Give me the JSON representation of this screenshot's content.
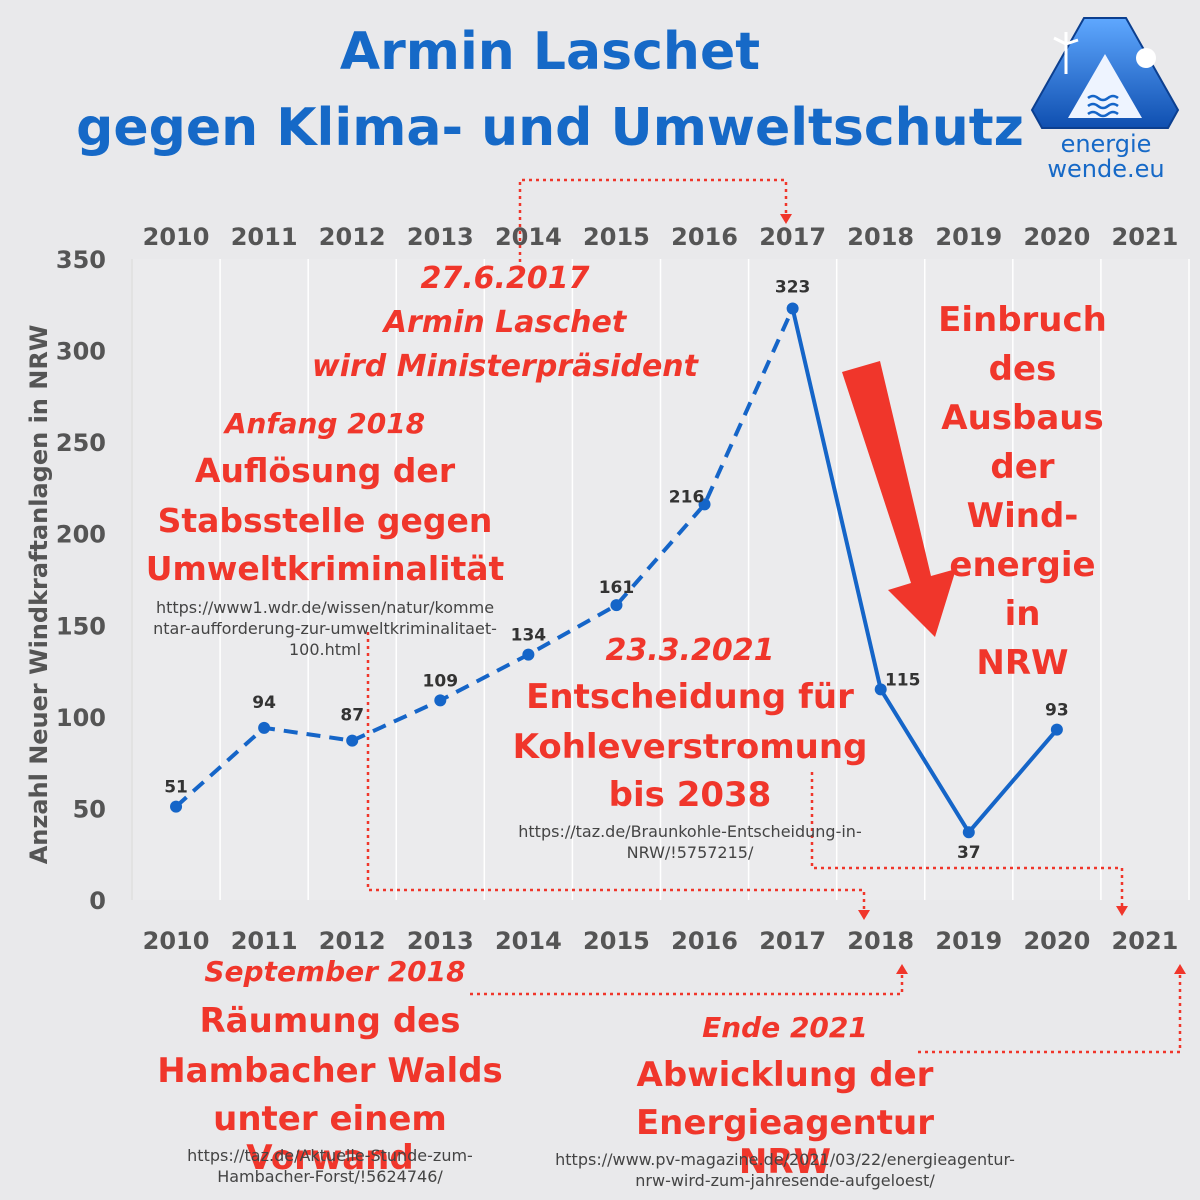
{
  "title": {
    "line1": "Armin Laschet",
    "line2": "gegen Klima- und Umweltschutz"
  },
  "logo": {
    "line1": "energie",
    "line2": "wende.eu"
  },
  "annotations": {
    "a1_date": "27.6.2017",
    "a1_line1": "Armin Laschet",
    "a1_line2": "wird Ministerpräsident",
    "a2_date": "Anfang 2018",
    "a2_line1": "Auflösung der",
    "a2_line2": "Stabsstelle gegen",
    "a2_line3": "Umweltkriminalität",
    "a2_url_l1": "https://www1.wdr.de/wissen/natur/komme",
    "a2_url_l2": "ntar-aufforderung-zur-umweltkriminalitaet-",
    "a2_url_l3": "100.html",
    "a3_date": "23.3.2021",
    "a3_line1": "Entscheidung für",
    "a3_line2": "Kohleverstromung",
    "a3_line3": "bis 2038",
    "a3_url_l1": "https://taz.de/Braunkohle-Entscheidung-in-",
    "a3_url_l2": "NRW/!5757215/",
    "a4_line1": "Einbruch",
    "a4_line2": "des",
    "a4_line3": "Ausbaus",
    "a4_line4": "der",
    "a4_line5": "Wind-",
    "a4_line6": "energie",
    "a4_line7": "in",
    "a4_line8": "NRW",
    "a5_date": "September 2018",
    "a5_line1": "Räumung des",
    "a5_line2": "Hambacher Walds",
    "a5_line3": "unter einem Vorwand",
    "a5_url_l1": "https://taz.de/Aktuelle-Stunde-zum-",
    "a5_url_l2": "Hambacher-Forst/!5624746/",
    "a6_date": "Ende 2021",
    "a6_line1": "Abwicklung der",
    "a6_line2": "Energieagentur NRW",
    "a6_url_l1": "https://www.pv-magazine.de/2021/03/22/energieagentur-",
    "a6_url_l2": "nrw-wird-zum-jahresende-aufgeloest/"
  },
  "colors": {
    "line": "#1565c8",
    "annotation": "#f0362b",
    "title": "#1669c7"
  },
  "chart_data": {
    "type": "line",
    "ylabel": "Anzahl Neuer Windkraftanlagen in NRW",
    "ylim": [
      0,
      350
    ],
    "yticks": [
      0,
      50,
      100,
      150,
      200,
      250,
      300,
      350
    ],
    "categories": [
      "2010",
      "2011",
      "2012",
      "2013",
      "2014",
      "2015",
      "2016",
      "2017",
      "2018",
      "2019",
      "2020",
      "2021"
    ],
    "series": [
      {
        "x": [
          "2010",
          "2011",
          "2012",
          "2013",
          "2014",
          "2015",
          "2016",
          "2017",
          "2018",
          "2019",
          "2020"
        ],
        "values": [
          51,
          94,
          87,
          109,
          134,
          161,
          216,
          323,
          115,
          37,
          93
        ],
        "dashed_until": "2017"
      }
    ],
    "grid": "vertical"
  }
}
